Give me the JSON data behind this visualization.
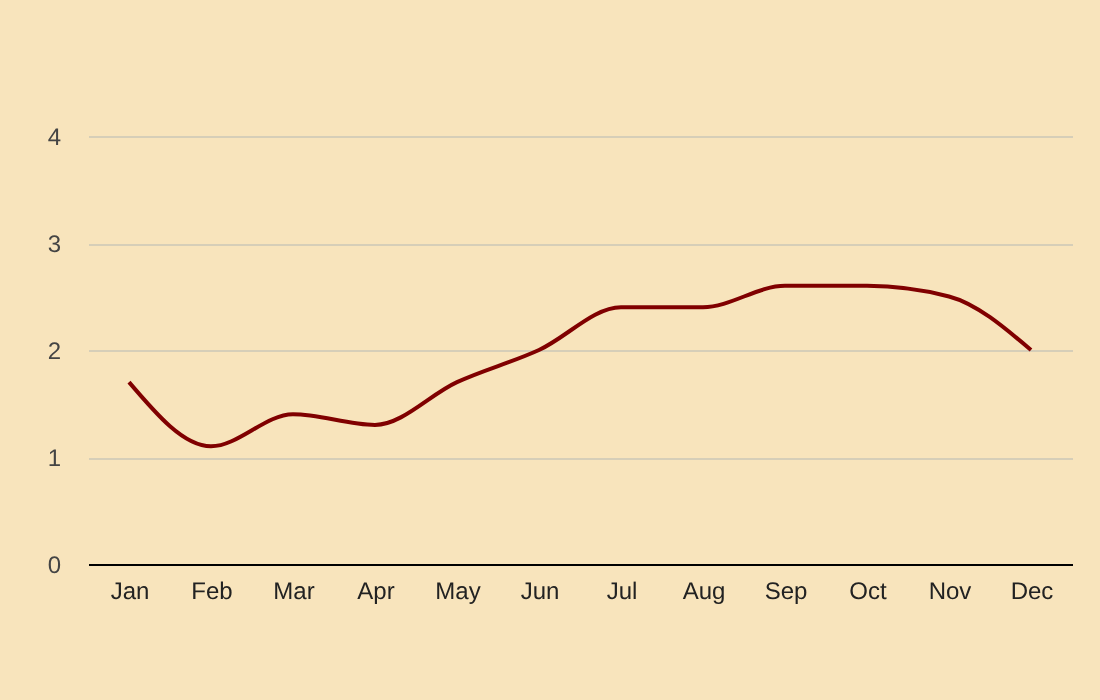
{
  "chart_data": {
    "type": "line",
    "categories": [
      "Jan",
      "Feb",
      "Mar",
      "Apr",
      "May",
      "Jun",
      "Jul",
      "Aug",
      "Sep",
      "Oct",
      "Nov",
      "Dec"
    ],
    "series": [
      {
        "color": "#800000",
        "values": [
          1.7,
          1.1,
          1.4,
          1.3,
          1.7,
          2.0,
          2.4,
          2.4,
          2.6,
          2.6,
          2.5,
          2.0
        ]
      }
    ],
    "ylim": [
      0,
      4
    ],
    "yticks": [
      0,
      1,
      2,
      3,
      4
    ],
    "grid": "y",
    "legend": false,
    "marker": "none",
    "line_style": "solid"
  }
}
